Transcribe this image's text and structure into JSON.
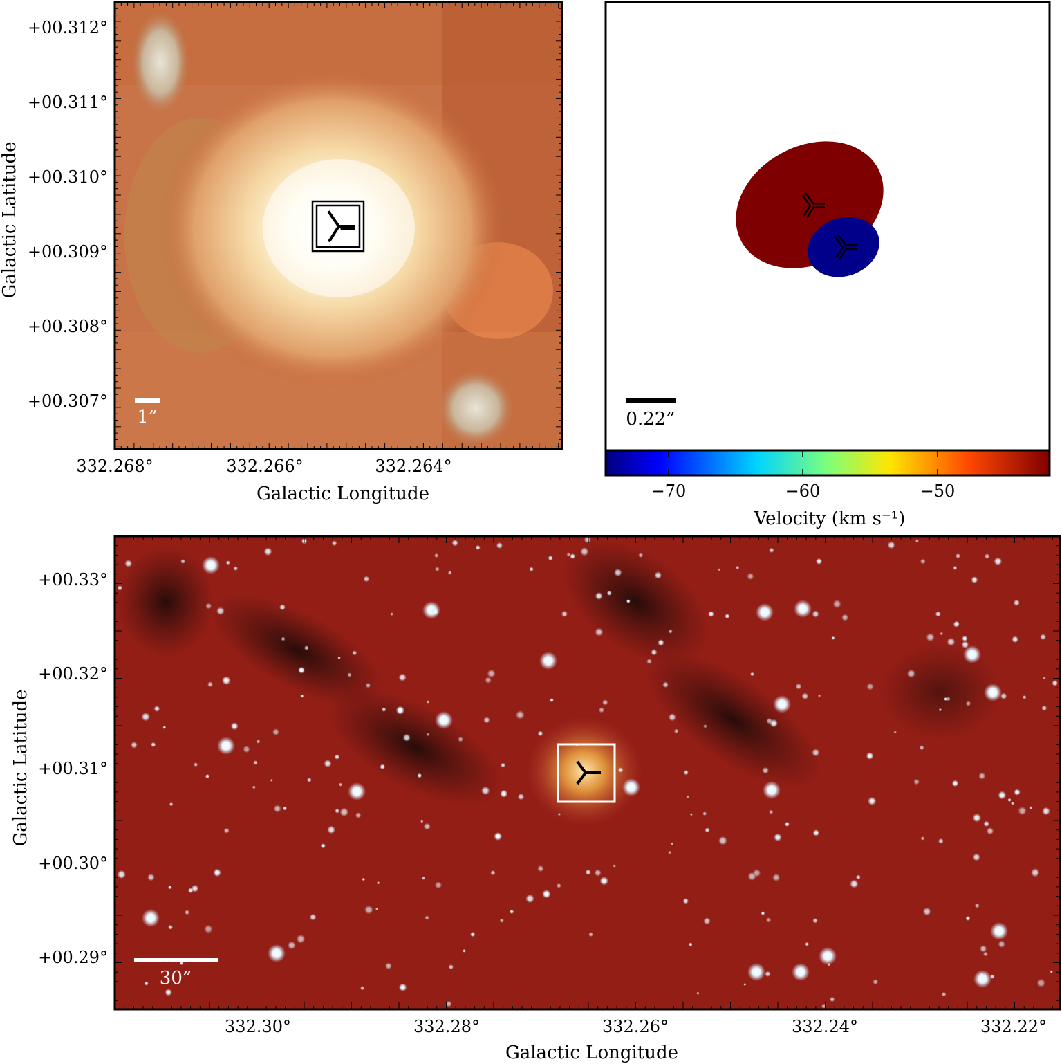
{
  "panel_top_left": {
    "ylabel": "Galactic Latitude",
    "xlabel": "Galactic Longitude",
    "y_ticks": [
      "+00.312°",
      "+00.311°",
      "+00.310°",
      "+00.309°",
      "+00.308°",
      "+00.307°"
    ],
    "x_ticks": [
      "332.268°",
      "332.266°",
      "332.264°"
    ],
    "scalebar_label": "1”",
    "marker_icon": "triple-spoke-marker-icon"
  },
  "panel_top_right": {
    "scalebar_label": "0.22”",
    "colorbar_label": "Velocity (km s⁻¹)",
    "colorbar_ticks": [
      "−70",
      "−60",
      "−50"
    ],
    "colorbar_range": [
      -75,
      -42
    ],
    "components": [
      {
        "velocity_color": "#7f0000",
        "label": "red component"
      },
      {
        "velocity_color": "#00008b",
        "label": "blue component"
      }
    ]
  },
  "panel_bottom": {
    "ylabel": "Galactic Latitude",
    "xlabel": "Galactic Longitude",
    "y_ticks": [
      "+00.33°",
      "+00.32°",
      "+00.31°",
      "+00.30°",
      "+00.29°"
    ],
    "x_ticks": [
      "332.30°",
      "332.28°",
      "332.26°",
      "332.24°",
      "332.22°"
    ],
    "scalebar_label": "30”"
  },
  "colors": {
    "nebula_bright": "#fffdf2",
    "nebula_orange": "#d9824a",
    "field_red": "#8c1a14",
    "dark_lane": "#2a0c0a",
    "star": "#f4fbff"
  }
}
